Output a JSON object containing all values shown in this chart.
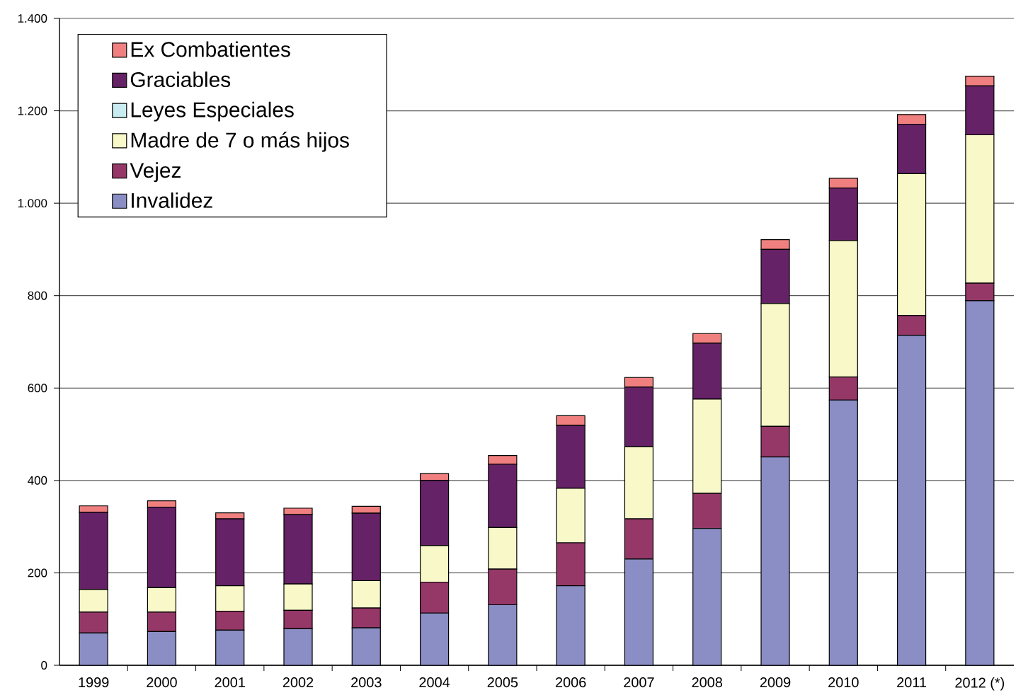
{
  "chart_data": {
    "type": "bar",
    "stacked": true,
    "categories": [
      "1999",
      "2000",
      "2001",
      "2002",
      "2003",
      "2004",
      "2005",
      "2006",
      "2007",
      "2008",
      "2009",
      "2010",
      "2011",
      "2012 (*)"
    ],
    "series": [
      {
        "name": "Invalidez",
        "color": "#8a8ec4",
        "values": [
          70,
          73,
          76,
          79,
          81,
          113,
          131,
          172,
          230,
          296,
          451,
          574,
          714,
          789
        ]
      },
      {
        "name": "Vejez",
        "color": "#953868",
        "values": [
          45,
          42,
          41,
          40,
          43,
          67,
          77,
          93,
          87,
          76,
          66,
          50,
          43,
          38
        ]
      },
      {
        "name": "Madre de 7 o más hijos",
        "color": "#f8f8c8",
        "values": [
          49,
          53,
          55,
          57,
          59,
          79,
          90,
          118,
          156,
          204,
          266,
          295,
          307,
          321
        ]
      },
      {
        "name": "Leyes Especiales",
        "color": "#c8ecf0",
        "values": [
          null,
          null,
          null,
          null,
          null,
          null,
          null,
          null,
          null,
          null,
          null,
          null,
          null,
          null
        ]
      },
      {
        "name": "Graciables",
        "color": "#662266",
        "values": [
          167,
          174,
          145,
          150,
          146,
          141,
          137,
          136,
          129,
          121,
          117,
          114,
          107,
          106
        ]
      },
      {
        "name": "Ex Combatientes",
        "color": "#f08080",
        "values": [
          14,
          14,
          13,
          14,
          15,
          15,
          19,
          21,
          21,
          21,
          21,
          21,
          21,
          21
        ]
      }
    ],
    "ylim": [
      0,
      1400
    ],
    "yticks": [
      0,
      200,
      400,
      600,
      800,
      {
        "value": 1000,
        "label": "1.000"
      },
      {
        "value": 1200,
        "label": "1.200"
      },
      {
        "value": 1400,
        "label": "1.400"
      }
    ],
    "grid": "y",
    "legend": "top left"
  }
}
